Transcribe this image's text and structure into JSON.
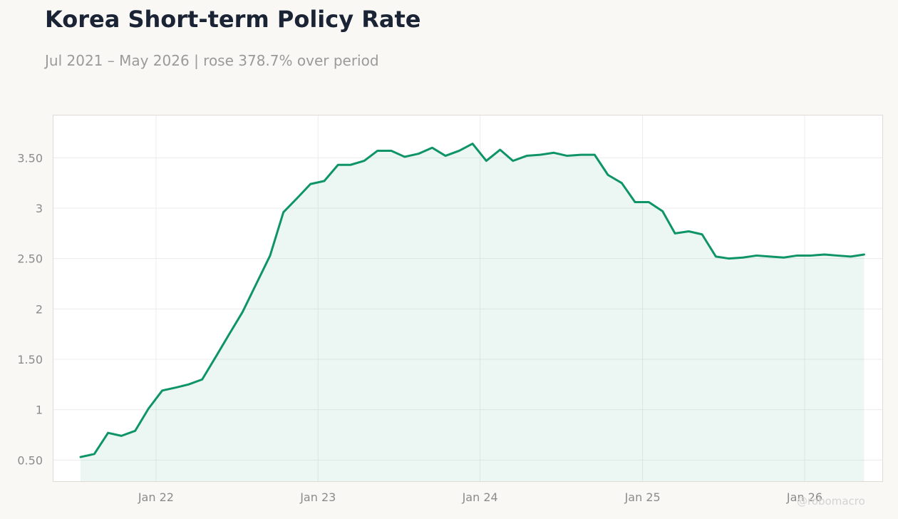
{
  "header": {
    "title": "Korea Short-term Policy Rate",
    "subtitle": "Jul 2021 – May 2026 | rose 378.7% over period"
  },
  "watermark": "@robomacro",
  "colors": {
    "line": "#0e9467",
    "fill": "#0e9467",
    "background": "#f9f8f5",
    "plot_background": "#ffffff",
    "grid": "#ececec",
    "tick_text": "#8b8b8b",
    "title": "#1b2435"
  },
  "chart_data": {
    "type": "area",
    "title": "Korea Short-term Policy Rate",
    "subtitle": "Jul 2021 – May 2026 | rose 378.7% over period",
    "xlabel": "",
    "ylabel": "",
    "x_range": [
      "2021-05-15",
      "2026-06-25"
    ],
    "ylim": [
      0.29,
      3.92
    ],
    "grid": true,
    "legend": "none",
    "x_ticks": [
      {
        "date": "2022-01-01",
        "label": "Jan 22"
      },
      {
        "date": "2023-01-01",
        "label": "Jan 23"
      },
      {
        "date": "2024-01-01",
        "label": "Jan 24"
      },
      {
        "date": "2025-01-01",
        "label": "Jan 25"
      },
      {
        "date": "2026-01-01",
        "label": "Jan 26"
      }
    ],
    "y_ticks": [
      {
        "value": 0.5,
        "label": "0.50"
      },
      {
        "value": 1,
        "label": "1"
      },
      {
        "value": 1.5,
        "label": "1.50"
      },
      {
        "value": 2,
        "label": "2"
      },
      {
        "value": 2.5,
        "label": "2.50"
      },
      {
        "value": 3,
        "label": "3"
      },
      {
        "value": 3.5,
        "label": "3.50"
      }
    ],
    "series": [
      {
        "x": [
          "2021-07",
          "2021-08",
          "2021-09",
          "2021-10",
          "2021-11",
          "2021-12",
          "2022-01",
          "2022-02",
          "2022-03",
          "2022-04",
          "2022-05",
          "2022-06",
          "2022-07",
          "2022-08",
          "2022-09",
          "2022-10",
          "2022-11",
          "2022-12",
          "2023-01",
          "2023-02",
          "2023-03",
          "2023-04",
          "2023-05",
          "2023-06",
          "2023-07",
          "2023-08",
          "2023-09",
          "2023-10",
          "2023-11",
          "2023-12",
          "2024-01",
          "2024-02",
          "2024-03",
          "2024-04",
          "2024-05",
          "2024-06",
          "2024-07",
          "2024-08",
          "2024-09",
          "2024-10",
          "2024-11",
          "2024-12",
          "2025-01",
          "2025-02",
          "2025-03",
          "2025-04",
          "2025-05",
          "2025-06",
          "2025-07",
          "2025-08",
          "2025-09",
          "2025-10",
          "2025-11",
          "2025-12",
          "2026-01",
          "2026-02",
          "2026-03",
          "2026-04",
          "2026-05"
        ],
        "values": [
          0.53,
          0.56,
          0.77,
          0.74,
          0.79,
          1.01,
          1.19,
          1.22,
          1.25,
          1.3,
          1.52,
          1.75,
          1.97,
          2.25,
          2.53,
          2.96,
          3.1,
          3.24,
          3.27,
          3.43,
          3.43,
          3.47,
          3.57,
          3.57,
          3.51,
          3.54,
          3.6,
          3.52,
          3.57,
          3.64,
          3.47,
          3.58,
          3.47,
          3.52,
          3.53,
          3.55,
          3.52,
          3.53,
          3.53,
          3.33,
          3.25,
          3.06,
          3.06,
          2.97,
          2.75,
          2.77,
          2.74,
          2.52,
          2.5,
          2.51,
          2.53,
          2.52,
          2.51,
          2.53,
          2.53,
          2.54,
          2.53,
          2.52,
          2.54
        ]
      }
    ]
  }
}
